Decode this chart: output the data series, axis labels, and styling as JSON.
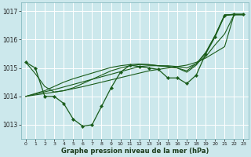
{
  "title": "Graphe pression niveau de la mer (hPa)",
  "bg_color": "#cce8ec",
  "grid_color": "#b0d8dc",
  "line_color": "#1a5c1a",
  "xlim": [
    -0.5,
    23.5
  ],
  "ylim": [
    1012.5,
    1017.3
  ],
  "yticks": [
    1013,
    1014,
    1015,
    1016,
    1017
  ],
  "xticks": [
    0,
    1,
    2,
    3,
    4,
    5,
    6,
    7,
    8,
    9,
    10,
    11,
    12,
    13,
    14,
    15,
    16,
    17,
    18,
    19,
    20,
    21,
    22,
    23
  ],
  "main_series": [
    1015.2,
    1015.0,
    1014.0,
    1014.0,
    1013.75,
    1013.2,
    1012.95,
    1013.0,
    1013.65,
    1014.3,
    1014.85,
    1015.1,
    1015.05,
    1015.0,
    1014.95,
    1014.65,
    1014.65,
    1014.45,
    1014.75,
    1015.5,
    1016.1,
    1016.85,
    1016.9,
    1016.9
  ],
  "trend_lines": [
    [
      1014.0,
      1014.05,
      1014.1,
      1014.15,
      1014.2,
      1014.27,
      1014.34,
      1014.42,
      1014.5,
      1014.58,
      1014.66,
      1014.74,
      1014.82,
      1014.9,
      1014.95,
      1015.0,
      1015.05,
      1015.1,
      1015.2,
      1015.35,
      1015.55,
      1015.75,
      1016.88,
      1016.88
    ],
    [
      1014.0,
      1014.08,
      1014.16,
      1014.24,
      1014.33,
      1014.42,
      1014.51,
      1014.6,
      1014.69,
      1014.78,
      1014.87,
      1014.96,
      1015.05,
      1015.08,
      1015.08,
      1015.08,
      1015.05,
      1015.0,
      1015.15,
      1015.4,
      1015.82,
      1016.2,
      1016.88,
      1016.88
    ],
    [
      1014.0,
      1014.1,
      1014.2,
      1014.35,
      1014.5,
      1014.62,
      1014.72,
      1014.82,
      1014.92,
      1015.02,
      1015.08,
      1015.12,
      1015.14,
      1015.12,
      1015.08,
      1015.05,
      1015.0,
      1014.9,
      1015.15,
      1015.55,
      1016.15,
      1016.85,
      1016.88,
      1016.88
    ]
  ],
  "long_trend": [
    1015.2,
    1014.8,
    1014.35,
    1014.15,
    1014.2,
    1014.3,
    1014.45,
    1014.6,
    1014.75,
    1014.9,
    1015.0,
    1015.08,
    1015.12,
    1015.12,
    1015.08,
    1015.05,
    1015.0,
    1014.85,
    1015.1,
    1015.52,
    1016.15,
    1016.88,
    1016.88,
    1016.88
  ]
}
